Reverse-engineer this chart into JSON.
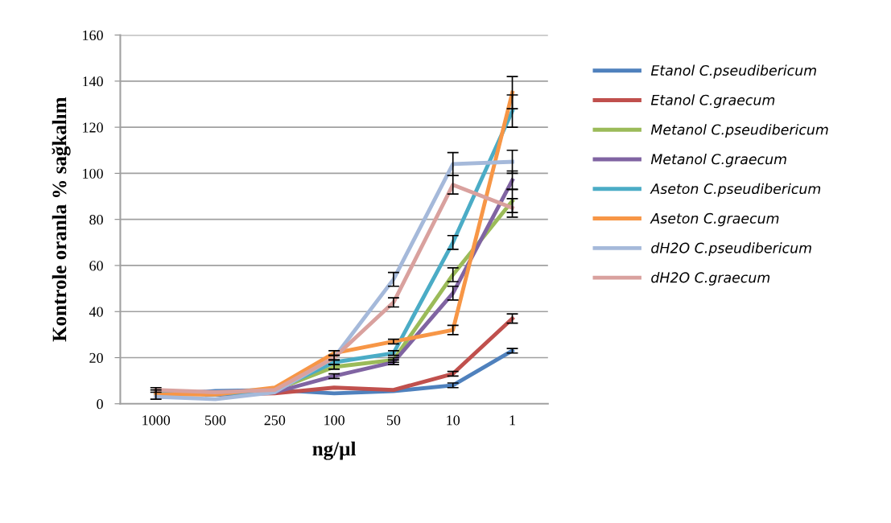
{
  "chart_data": {
    "type": "line",
    "xlabel": "ng/µl",
    "ylabel": "Kontrole oranla % sağkalım",
    "categories": [
      "1000",
      "500",
      "250",
      "100",
      "50",
      "10",
      "1"
    ],
    "ylim": [
      0,
      160
    ],
    "yticks": [
      0,
      20,
      40,
      60,
      80,
      100,
      120,
      140,
      160
    ],
    "grid": "y",
    "legend": "right",
    "marker": "none",
    "line_style": "solid",
    "series": [
      {
        "name": "Etanol C.pseudibericum",
        "color": "#4f81bd",
        "values": [
          4,
          5.5,
          6,
          4.5,
          5.5,
          8,
          23
        ],
        "errors": [
          2,
          null,
          null,
          null,
          null,
          1,
          1
        ]
      },
      {
        "name": "Etanol C.graecum",
        "color": "#c0504d",
        "values": [
          5,
          4,
          4.5,
          7,
          6,
          13,
          37
        ],
        "errors": [
          null,
          null,
          null,
          null,
          null,
          1,
          2
        ]
      },
      {
        "name": "Metanol C.pseudibericum",
        "color": "#9bbb59",
        "values": [
          5,
          4,
          6,
          16,
          19,
          56,
          88
        ],
        "errors": [
          null,
          null,
          null,
          1,
          1,
          3,
          5
        ]
      },
      {
        "name": "Metanol C.graecum",
        "color": "#8064a2",
        "values": [
          5,
          4,
          5,
          12,
          18,
          48,
          97
        ],
        "errors": [
          null,
          null,
          null,
          1,
          1,
          3,
          4
        ]
      },
      {
        "name": "Aseton C.pseudibericum",
        "color": "#4bacc6",
        "values": [
          5,
          4,
          6,
          18,
          22,
          70,
          127
        ],
        "errors": [
          null,
          null,
          null,
          1,
          1,
          3,
          7
        ]
      },
      {
        "name": "Aseton C.graecum",
        "color": "#f79646",
        "values": [
          4,
          4,
          7,
          22,
          27,
          32,
          135
        ],
        "errors": [
          null,
          null,
          null,
          1,
          1,
          2,
          7
        ]
      },
      {
        "name": "dH2O C.pseudibericum",
        "color": "#a5b9da",
        "values": [
          3,
          2,
          5,
          20,
          54,
          104,
          105
        ],
        "errors": [
          null,
          null,
          null,
          1,
          3,
          5,
          5
        ]
      },
      {
        "name": "dH2O C.graecum",
        "color": "#d9a19e",
        "values": [
          6,
          5,
          6,
          20,
          44,
          95,
          85
        ],
        "errors": [
          1,
          null,
          null,
          null,
          2,
          4,
          4
        ]
      }
    ]
  }
}
